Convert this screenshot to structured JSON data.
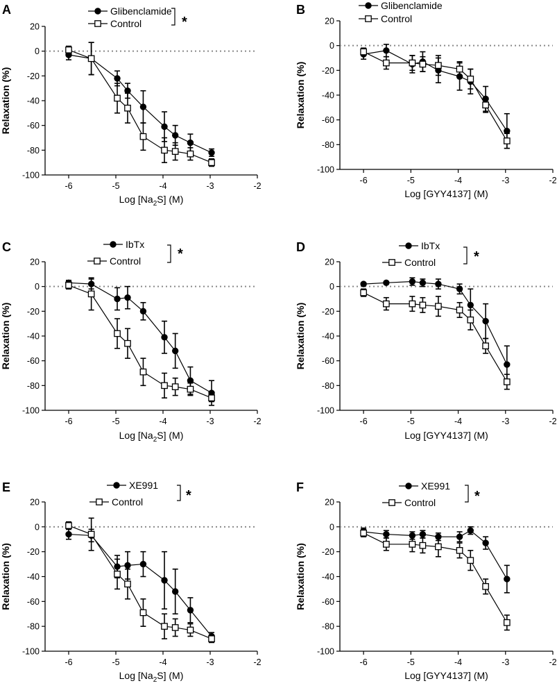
{
  "chart_data": [
    {
      "type": "line",
      "panel": "A",
      "xlabel": "Log [Na2S] (M)",
      "xlabel_main": "Log [Na",
      "xlabel_sub": "2",
      "xlabel_tail": "S] (M)",
      "ylabel": "Relaxation (%)",
      "xlim": [
        -6.5,
        -2
      ],
      "ylim": [
        -100,
        20
      ],
      "xticks": [
        -6,
        -5,
        -4,
        -3,
        -2
      ],
      "xtick_labels": [
        "-6",
        "-5",
        "-4",
        "-3",
        "-2"
      ],
      "yticks": [
        20,
        0,
        -20,
        -40,
        -60,
        -80,
        -100
      ],
      "ytick_labels": [
        "20",
        "0",
        "-20",
        "-40",
        "-60",
        "-80",
        "-100"
      ],
      "reference_line": 0,
      "significance": "*",
      "series": [
        {
          "name": "Glibenclamide",
          "marker": "filled-circle",
          "x": [
            -6,
            -5.52,
            -4.97,
            -4.75,
            -4.42,
            -3.97,
            -3.74,
            -3.42,
            -2.97
          ],
          "values": [
            -3,
            -6,
            -22,
            -32,
            -45,
            -61,
            -68,
            -74,
            -82
          ],
          "errors": [
            4,
            13,
            6,
            6,
            13,
            12,
            8,
            7,
            3
          ]
        },
        {
          "name": "Control",
          "marker": "open-square",
          "x": [
            -6,
            -5.52,
            -4.97,
            -4.75,
            -4.42,
            -3.97,
            -3.74,
            -3.42,
            -2.97
          ],
          "values": [
            1,
            -6,
            -38,
            -46,
            -69,
            -80,
            -81,
            -83,
            -90
          ],
          "errors": [
            3,
            13,
            12,
            12,
            11,
            10,
            7,
            5,
            3
          ]
        }
      ]
    },
    {
      "type": "line",
      "panel": "B",
      "xlabel": "Log [GYY4137] (M)",
      "ylabel": "Relaxation (%)",
      "xlim": [
        -6.5,
        -2
      ],
      "ylim": [
        -100,
        20
      ],
      "xticks": [
        -6,
        -5,
        -4,
        -3,
        -2
      ],
      "xtick_labels": [
        "-6",
        "-5",
        "-4",
        "-3",
        "-2"
      ],
      "yticks": [
        20,
        0,
        -20,
        -40,
        -60,
        -80,
        -100
      ],
      "ytick_labels": [
        "20",
        "0",
        "-20",
        "-40",
        "-60",
        "-80",
        "-100"
      ],
      "reference_line": 0,
      "significance": "",
      "series": [
        {
          "name": "Glibenclamide",
          "marker": "filled-circle",
          "x": [
            -6,
            -5.52,
            -4.97,
            -4.75,
            -4.42,
            -3.97,
            -3.74,
            -3.42,
            -2.97
          ],
          "values": [
            -7,
            -4,
            -15,
            -13,
            -20,
            -25,
            -29,
            -43,
            -69
          ],
          "errors": [
            4,
            5,
            7,
            8,
            10,
            11,
            10,
            10,
            14
          ]
        },
        {
          "name": "Control",
          "marker": "open-square",
          "x": [
            -6,
            -5.52,
            -4.97,
            -4.75,
            -4.42,
            -3.97,
            -3.74,
            -3.42,
            -2.97
          ],
          "values": [
            -5,
            -14,
            -14,
            -15,
            -16,
            -19,
            -27,
            -48,
            -77
          ],
          "errors": [
            3,
            5,
            6,
            6,
            8,
            6,
            8,
            6,
            6
          ]
        }
      ]
    },
    {
      "type": "line",
      "panel": "C",
      "xlabel": "Log [Na2S] (M)",
      "xlabel_main": "Log [Na",
      "xlabel_sub": "2",
      "xlabel_tail": "S] (M)",
      "ylabel": "Relaxation (%)",
      "xlim": [
        -6.5,
        -2
      ],
      "ylim": [
        -100,
        20
      ],
      "xticks": [
        -6,
        -5,
        -4,
        -3,
        -2
      ],
      "xtick_labels": [
        "-6",
        "-5",
        "-4",
        "-3",
        "-2"
      ],
      "yticks": [
        20,
        0,
        -20,
        -40,
        -60,
        -80,
        -100
      ],
      "ytick_labels": [
        "20",
        "0",
        "-20",
        "-40",
        "-60",
        "-80",
        "-100"
      ],
      "reference_line": 0,
      "significance": "*",
      "series": [
        {
          "name": "IbTx",
          "marker": "filled-circle",
          "x": [
            -6,
            -5.52,
            -4.97,
            -4.75,
            -4.42,
            -3.97,
            -3.74,
            -3.42,
            -2.97
          ],
          "values": [
            3,
            2,
            -10,
            -9,
            -20,
            -41,
            -52,
            -76,
            -86
          ],
          "errors": [
            2,
            4,
            9,
            9,
            7,
            13,
            14,
            11,
            10
          ]
        },
        {
          "name": "Control",
          "marker": "open-square",
          "x": [
            -6,
            -5.52,
            -4.97,
            -4.75,
            -4.42,
            -3.97,
            -3.74,
            -3.42,
            -2.97
          ],
          "values": [
            1,
            -6,
            -38,
            -46,
            -69,
            -80,
            -81,
            -83,
            -90
          ],
          "errors": [
            3,
            13,
            12,
            12,
            11,
            10,
            7,
            5,
            3
          ]
        }
      ]
    },
    {
      "type": "line",
      "panel": "D",
      "xlabel": "Log [GYY4137] (M)",
      "ylabel": "Relaxation (%)",
      "xlim": [
        -6.5,
        -2
      ],
      "ylim": [
        -100,
        20
      ],
      "xticks": [
        -6,
        -5,
        -4,
        -3,
        -2
      ],
      "xtick_labels": [
        "-6",
        "-5",
        "-4",
        "-3",
        "-2"
      ],
      "yticks": [
        20,
        0,
        -20,
        -40,
        -60,
        -80,
        -100
      ],
      "ytick_labels": [
        "20",
        "0",
        "-20",
        "-40",
        "-60",
        "-80",
        "-100"
      ],
      "reference_line": 0,
      "significance": "*",
      "series": [
        {
          "name": "IbTx",
          "marker": "filled-circle",
          "x": [
            -6,
            -5.52,
            -4.97,
            -4.75,
            -4.42,
            -3.97,
            -3.74,
            -3.42,
            -2.97
          ],
          "values": [
            2,
            3,
            4,
            3,
            2,
            -2,
            -15,
            -28,
            -63
          ],
          "errors": [
            1,
            1,
            3,
            3,
            4,
            4,
            13,
            14,
            15
          ]
        },
        {
          "name": "Control",
          "marker": "open-square",
          "x": [
            -6,
            -5.52,
            -4.97,
            -4.75,
            -4.42,
            -3.97,
            -3.74,
            -3.42,
            -2.97
          ],
          "values": [
            -5,
            -14,
            -14,
            -15,
            -16,
            -19,
            -27,
            -48,
            -77
          ],
          "errors": [
            3,
            5,
            6,
            6,
            8,
            6,
            8,
            6,
            6
          ]
        }
      ]
    },
    {
      "type": "line",
      "panel": "E",
      "xlabel": "Log [Na2S] (M)",
      "xlabel_main": "Log [Na",
      "xlabel_sub": "2",
      "xlabel_tail": "S] (M)",
      "ylabel": "Relaxation (%)",
      "xlim": [
        -6.5,
        -2
      ],
      "ylim": [
        -100,
        20
      ],
      "xticks": [
        -6,
        -5,
        -4,
        -3,
        -2
      ],
      "xtick_labels": [
        "-6",
        "-5",
        "-4",
        "-3",
        "-2"
      ],
      "yticks": [
        20,
        0,
        -20,
        -40,
        -60,
        -80,
        -100
      ],
      "ytick_labels": [
        "20",
        "0",
        "-20",
        "-40",
        "-60",
        "-80",
        "-100"
      ],
      "reference_line": 0,
      "significance": "*",
      "series": [
        {
          "name": "XE991",
          "marker": "filled-circle",
          "x": [
            -6,
            -5.52,
            -4.97,
            -4.75,
            -4.42,
            -3.97,
            -3.74,
            -3.42,
            -2.97
          ],
          "values": [
            -6,
            -7,
            -32,
            -31,
            -30,
            -43,
            -52,
            -67,
            -88
          ],
          "errors": [
            4,
            5,
            9,
            11,
            10,
            23,
            18,
            10,
            3
          ]
        },
        {
          "name": "Control",
          "marker": "open-square",
          "x": [
            -6,
            -5.52,
            -4.97,
            -4.75,
            -4.42,
            -3.97,
            -3.74,
            -3.42,
            -2.97
          ],
          "values": [
            1,
            -6,
            -38,
            -46,
            -69,
            -80,
            -81,
            -83,
            -90
          ],
          "errors": [
            3,
            13,
            12,
            12,
            11,
            10,
            7,
            5,
            3
          ]
        }
      ]
    },
    {
      "type": "line",
      "panel": "F",
      "xlabel": "Log [GYY4137] (M)",
      "ylabel": "Relaxation (%)",
      "xlim": [
        -6.5,
        -2
      ],
      "ylim": [
        -100,
        20
      ],
      "xticks": [
        -6,
        -5,
        -4,
        -3,
        -2
      ],
      "xtick_labels": [
        "-6",
        "-5",
        "-4",
        "-3",
        "-2"
      ],
      "yticks": [
        20,
        0,
        -20,
        -40,
        -60,
        -80,
        -100
      ],
      "ytick_labels": [
        "20",
        "0",
        "-20",
        "-40",
        "-60",
        "-80",
        "-100"
      ],
      "reference_line": 0,
      "significance": "*",
      "series": [
        {
          "name": "XE991",
          "marker": "filled-circle",
          "x": [
            -6,
            -5.52,
            -4.97,
            -4.75,
            -4.42,
            -3.97,
            -3.74,
            -3.42,
            -2.97
          ],
          "values": [
            -4,
            -6,
            -7,
            -6,
            -8,
            -8,
            -3,
            -13,
            -42
          ],
          "errors": [
            3,
            3,
            3,
            3,
            3,
            4,
            3,
            5,
            11
          ]
        },
        {
          "name": "Control",
          "marker": "open-square",
          "x": [
            -6,
            -5.52,
            -4.97,
            -4.75,
            -4.42,
            -3.97,
            -3.74,
            -3.42,
            -2.97
          ],
          "values": [
            -5,
            -14,
            -14,
            -15,
            -16,
            -19,
            -27,
            -48,
            -77
          ],
          "errors": [
            3,
            5,
            6,
            6,
            8,
            6,
            8,
            6,
            6
          ]
        }
      ]
    }
  ]
}
